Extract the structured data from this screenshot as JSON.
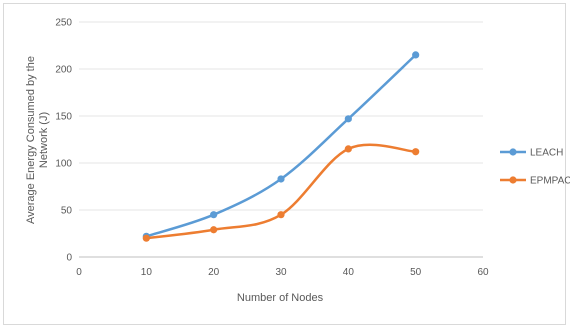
{
  "chart_data": {
    "type": "line",
    "xlabel": "Number of Nodes",
    "ylabel": "Average Energy Consumed by the Network (J)",
    "xlim": [
      0,
      60
    ],
    "ylim": [
      0,
      250
    ],
    "xticks": [
      "0",
      "10",
      "20",
      "30",
      "40",
      "50",
      "60"
    ],
    "yticks": [
      "0",
      "50",
      "100",
      "150",
      "200",
      "250"
    ],
    "grid": "horizontal",
    "legend_position": "right",
    "series": [
      {
        "name": "LEACH",
        "color": "#5b9bd5",
        "x": [
          10,
          20,
          30,
          40,
          50
        ],
        "y": [
          22,
          45,
          83,
          147,
          215
        ]
      },
      {
        "name": "EPMPAC",
        "color": "#ed7d31",
        "x": [
          10,
          20,
          30,
          40,
          50
        ],
        "y": [
          20,
          29,
          45,
          115,
          112
        ]
      }
    ]
  }
}
